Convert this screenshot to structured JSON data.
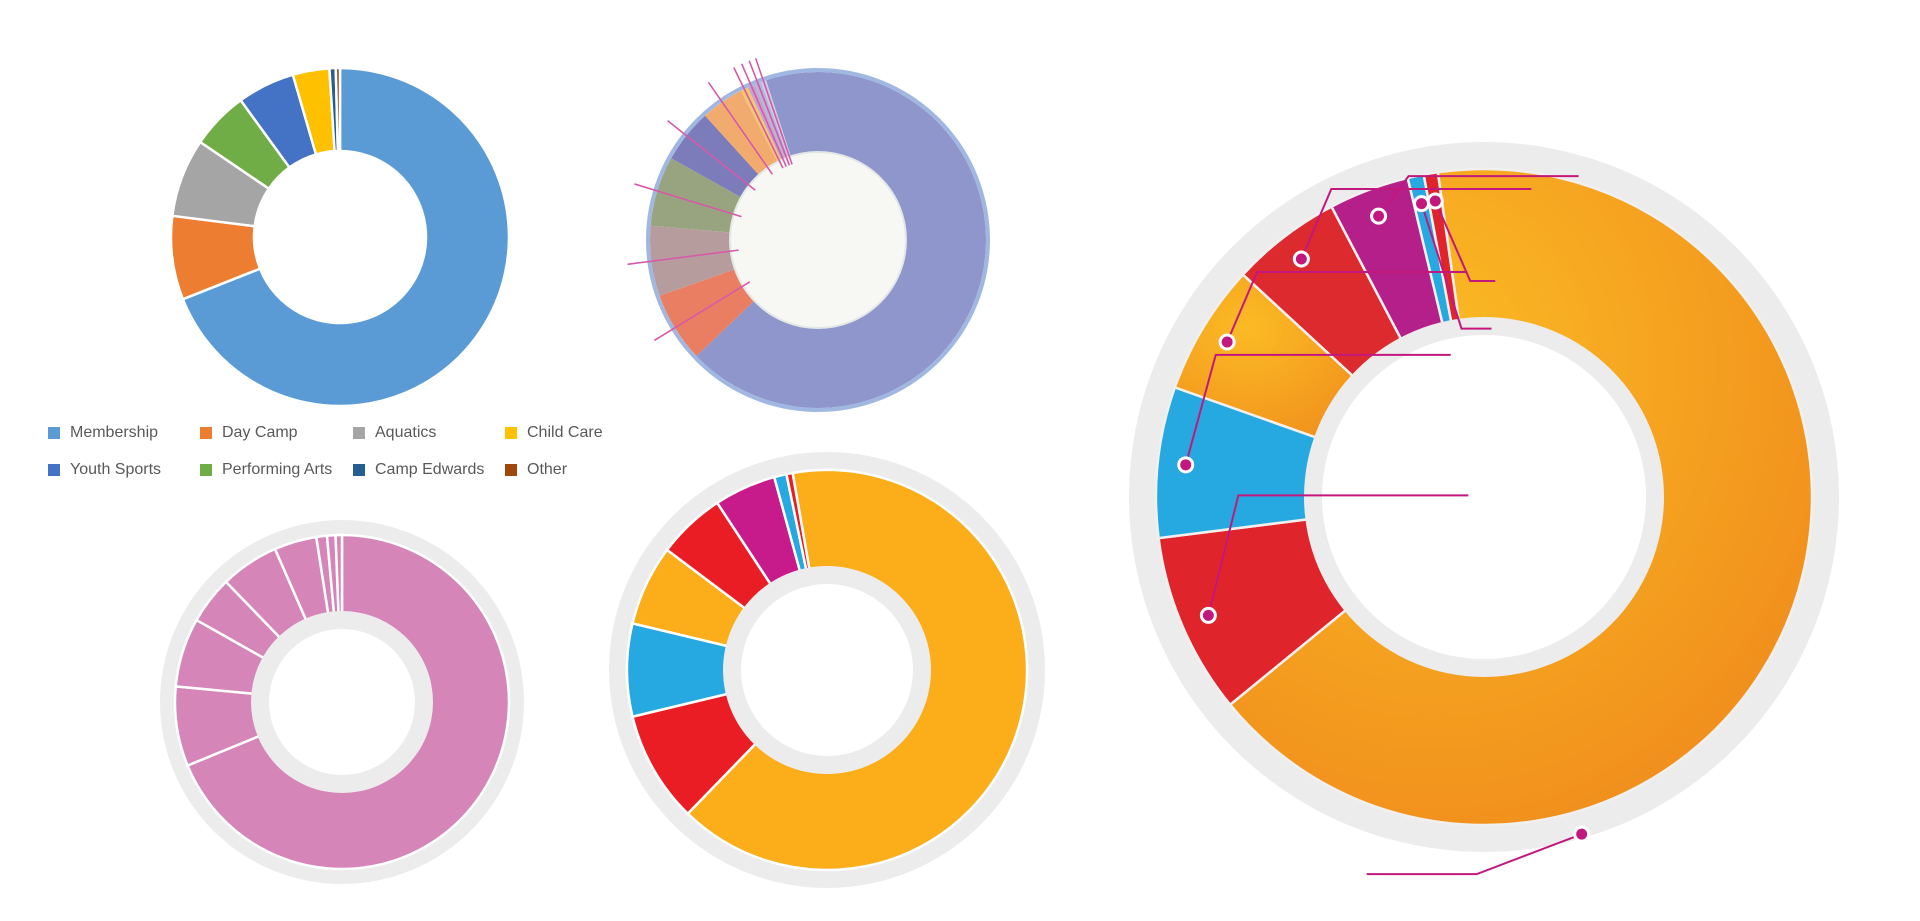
{
  "chart_data": [
    {
      "id": "donut-1",
      "type": "pie",
      "donut": true,
      "categories": [
        "Membership",
        "Day Camp",
        "Aquatics",
        "Child Care",
        "Youth Sports",
        "Performing Arts",
        "Camp Edwards",
        "Other"
      ],
      "values": [
        69.0,
        8.0,
        7.5,
        3.5,
        5.5,
        5.5,
        0.6,
        0.4
      ],
      "colors": [
        "#5b9bd5",
        "#ed7d31",
        "#a5a5a5",
        "#ffc000",
        "#4472c4",
        "#70ad47",
        "#255e91",
        "#9e480e"
      ],
      "order": [
        0,
        1,
        2,
        5,
        4,
        3,
        6,
        7
      ],
      "legend": {
        "position": "bottom",
        "entries": [
          "Membership",
          "Day Camp",
          "Aquatics",
          "Child Care",
          "Youth Sports",
          "Performing Arts",
          "Camp Edwards",
          "Other"
        ]
      }
    },
    {
      "id": "donut-2",
      "type": "pie",
      "donut": true,
      "values": [
        65.5,
        6.5,
        6.5,
        6.5,
        5.0,
        4.0,
        0.7,
        0.7,
        0.6,
        0.5
      ],
      "colors": [
        "#8e96cb",
        "#ea7e63",
        "#b79c9e",
        "#98a480",
        "#7d7cbb",
        "#f2ab6f",
        "#f4c86a",
        "#c4a5cf",
        "#b3b7d8",
        "#c9cde4"
      ]
    },
    {
      "id": "donut-3",
      "type": "pie",
      "donut": true,
      "values": [
        67.0,
        7.5,
        6.5,
        4.5,
        5.5,
        4.0,
        1.0,
        0.8,
        0.6
      ],
      "colors": [
        "#d585b8",
        "#d585b8",
        "#d585b8",
        "#d585b8",
        "#d585b8",
        "#d585b8",
        "#d585b8",
        "#d585b8",
        "#d585b8"
      ]
    },
    {
      "id": "donut-4",
      "type": "pie",
      "donut": true,
      "values": [
        65.0,
        9.0,
        7.5,
        6.5,
        5.5,
        5.0,
        1.0,
        0.5
      ],
      "colors": [
        "#fbad1a",
        "#ea1d25",
        "#26a8e0",
        "#fbad1a",
        "#ea1d25",
        "#c71a8b",
        "#26a8e0",
        "#ea1d25"
      ]
    },
    {
      "id": "donut-5",
      "type": "pie",
      "donut": true,
      "values": [
        67.0,
        9.0,
        7.5,
        6.5,
        5.5,
        4.0,
        0.8,
        0.7
      ],
      "colors": [
        "#f7a21c",
        "#e0242c",
        "#25a9e0",
        "#f9ad1e",
        "#dc2a2e",
        "#b51f8a",
        "#25a9e0",
        "#e0242c"
      ],
      "callout_color": "#c2187e"
    }
  ]
}
